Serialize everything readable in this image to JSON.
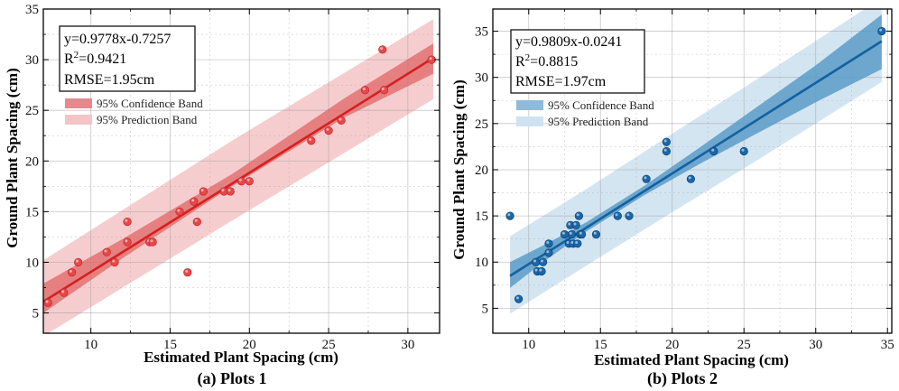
{
  "chart_data": [
    {
      "type": "scatter",
      "caption": "(a) Plots 1",
      "xlabel": "Estimated Plant Spacing (cm)",
      "ylabel": "Ground Plant Spacing (cm)",
      "xlim": [
        7,
        32
      ],
      "ylim": [
        3,
        35
      ],
      "xticks": [
        10,
        15,
        20,
        25,
        30
      ],
      "yticks": [
        5,
        10,
        15,
        20,
        25,
        30,
        35
      ],
      "grid": true,
      "colors": {
        "line": "#d42020",
        "points": "#e8474a",
        "confidence": "#e06060",
        "prediction": "#f4c4c6"
      },
      "stats": {
        "equation": "y=0.9778x-0.7257",
        "r2_prefix": "R",
        "r2_sup": "2",
        "r2_value": "=0.9421",
        "rmse": "RMSE=1.95cm"
      },
      "legend": {
        "position": "top-left",
        "entries": [
          "95% Confidence Band",
          "95% Prediction Band"
        ]
      },
      "fit": {
        "slope": 0.9778,
        "intercept": -0.7257,
        "x_range": [
          7,
          31.6
        ]
      },
      "bands": {
        "confidence": {
          "x": [
            7,
            12,
            19,
            26,
            31.6
          ],
          "lower": [
            5.0,
            10.4,
            17.6,
            24.3,
            28.6
          ],
          "upper": [
            7.9,
            12.3,
            18.8,
            26.2,
            31.6
          ]
        },
        "prediction": {
          "x": [
            7,
            19,
            31.6
          ],
          "lower": [
            2.7,
            14.2,
            26.1
          ],
          "upper": [
            10.2,
            22.1,
            34.0
          ]
        }
      },
      "points": [
        [
          7.3,
          6
        ],
        [
          8.3,
          7
        ],
        [
          8.8,
          9
        ],
        [
          9.2,
          10
        ],
        [
          11.0,
          11
        ],
        [
          11.5,
          10
        ],
        [
          12.3,
          12
        ],
        [
          12.3,
          14
        ],
        [
          13.7,
          12
        ],
        [
          13.9,
          12
        ],
        [
          15.6,
          15
        ],
        [
          16.1,
          9
        ],
        [
          16.5,
          16
        ],
        [
          16.7,
          14
        ],
        [
          17.1,
          17
        ],
        [
          18.4,
          17
        ],
        [
          18.8,
          17
        ],
        [
          19.5,
          18
        ],
        [
          20.0,
          18
        ],
        [
          23.9,
          22
        ],
        [
          25.0,
          23
        ],
        [
          25.8,
          24
        ],
        [
          27.3,
          27
        ],
        [
          28.4,
          31
        ],
        [
          28.5,
          27
        ],
        [
          31.5,
          30
        ]
      ]
    },
    {
      "type": "scatter",
      "caption": "(b) Plots 2",
      "xlabel": "Estimated Plant Spacing (cm)",
      "ylabel": "Ground Plant Spacing (cm)",
      "xlim": [
        7.5,
        35.3
      ],
      "ylim": [
        2.3,
        37.4
      ],
      "xticks": [
        10,
        15,
        20,
        25,
        30,
        35
      ],
      "yticks": [
        5,
        10,
        15,
        20,
        25,
        30,
        35
      ],
      "grid": true,
      "colors": {
        "line": "#1460a0",
        "points": "#1a66a8",
        "confidence": "#5a9cc8",
        "prediction": "#cfe2f1"
      },
      "stats": {
        "equation": "y=0.9809x-0.0241",
        "r2_prefix": "R",
        "r2_sup": "2",
        "r2_value": "=0.8815",
        "rmse": "RMSE=1.97cm"
      },
      "legend": {
        "position": "top-left",
        "entries": [
          "95% Confidence Band",
          "95% Prediction Band"
        ]
      },
      "fit": {
        "slope": 0.9809,
        "intercept": -0.0241,
        "x_range": [
          8.7,
          34.6
        ]
      },
      "bands": {
        "confidence": {
          "x": [
            8.7,
            11,
            14,
            18,
            22,
            26,
            30,
            34.6
          ],
          "lower": [
            7.2,
            10.0,
            13.3,
            17.2,
            20.7,
            24.0,
            27.3,
            30.9
          ],
          "upper": [
            10.0,
            11.8,
            14.3,
            18.2,
            22.5,
            26.9,
            31.3,
            36.8
          ]
        },
        "prediction": {
          "x": [
            8.7,
            14,
            20,
            26,
            34.6
          ],
          "lower": [
            4.4,
            9.6,
            15.4,
            21.1,
            29.5
          ],
          "upper": [
            12.8,
            17.9,
            23.9,
            29.9,
            38.6
          ]
        }
      },
      "points": [
        [
          8.7,
          15
        ],
        [
          9.3,
          6
        ],
        [
          10.5,
          10
        ],
        [
          10.6,
          9
        ],
        [
          10.9,
          9
        ],
        [
          11.0,
          10
        ],
        [
          11.4,
          12
        ],
        [
          11.4,
          11
        ],
        [
          12.5,
          13
        ],
        [
          12.8,
          12
        ],
        [
          12.9,
          14
        ],
        [
          13.0,
          13
        ],
        [
          13.1,
          12
        ],
        [
          13.3,
          14
        ],
        [
          13.4,
          12
        ],
        [
          13.5,
          15
        ],
        [
          13.6,
          13
        ],
        [
          13.7,
          13
        ],
        [
          14.7,
          13
        ],
        [
          16.2,
          15
        ],
        [
          17.0,
          15
        ],
        [
          18.2,
          19
        ],
        [
          19.6,
          22
        ],
        [
          19.6,
          23
        ],
        [
          21.3,
          19
        ],
        [
          22.9,
          22
        ],
        [
          25.0,
          22
        ],
        [
          34.6,
          35
        ]
      ]
    }
  ]
}
